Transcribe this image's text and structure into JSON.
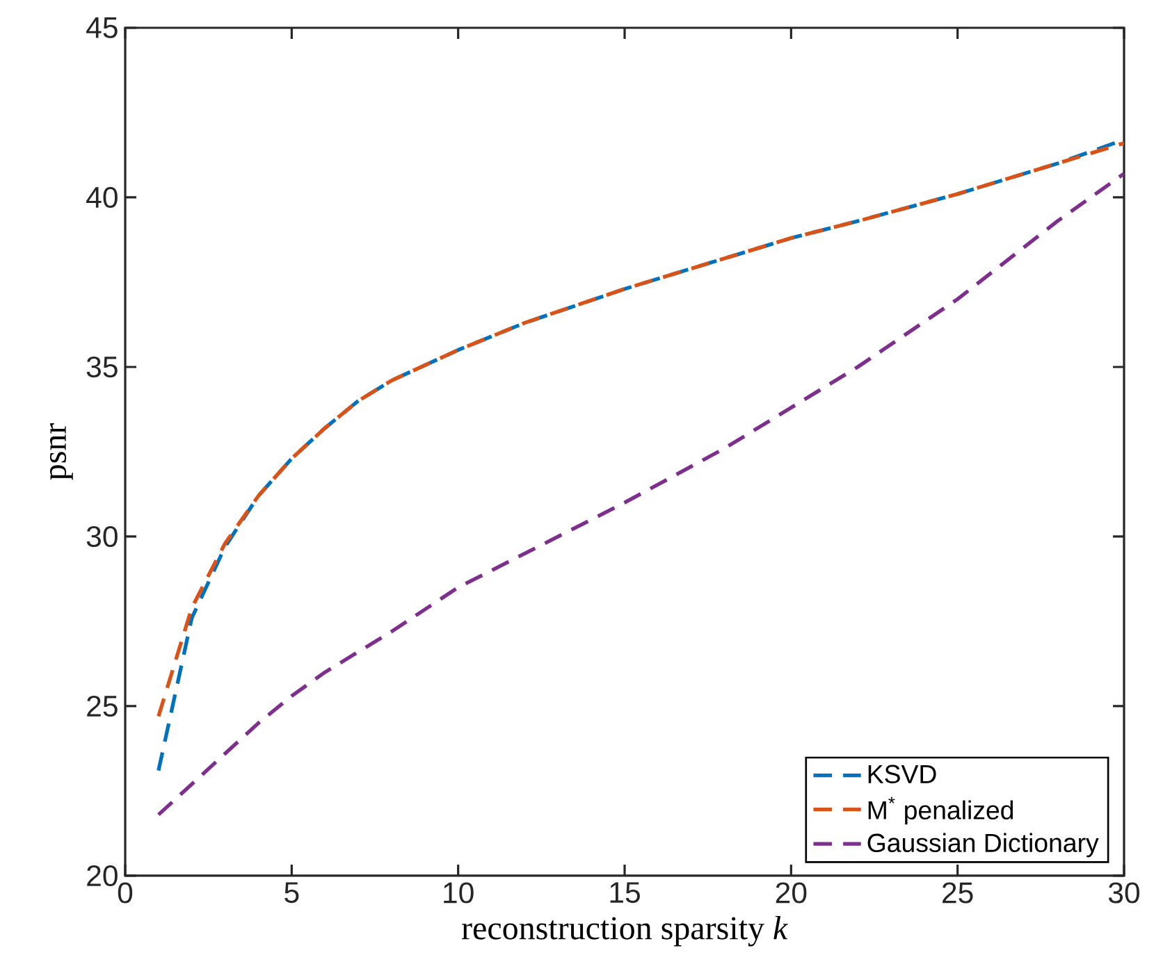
{
  "chart_data": {
    "type": "line",
    "xlabel": "reconstruction sparsity *k*",
    "ylabel": "psnr",
    "x": [
      1,
      2,
      3,
      4,
      5,
      6,
      7,
      8,
      10,
      12,
      15,
      18,
      20,
      22,
      25,
      28,
      30
    ],
    "series": [
      {
        "name": "KSVD",
        "color": "#0072bd",
        "values": [
          23.1,
          27.6,
          29.7,
          31.2,
          32.3,
          33.2,
          34.0,
          34.6,
          35.5,
          36.3,
          37.3,
          38.2,
          38.8,
          39.3,
          40.1,
          41.0,
          41.7
        ]
      },
      {
        "name": "M$^{*}$ penalized",
        "color": "#d95319",
        "values": [
          24.7,
          27.9,
          29.8,
          31.2,
          32.3,
          33.2,
          34.0,
          34.6,
          35.5,
          36.3,
          37.3,
          38.2,
          38.8,
          39.3,
          40.1,
          41.0,
          41.6
        ]
      },
      {
        "name": "Gaussian Dictionary",
        "color": "#7e2f8e",
        "values": [
          21.8,
          22.7,
          23.6,
          24.5,
          25.3,
          26.0,
          26.6,
          27.2,
          28.5,
          29.5,
          31.0,
          32.6,
          33.8,
          35.0,
          37.0,
          39.3,
          40.7
        ]
      }
    ],
    "xlim": [
      0,
      30
    ],
    "ylim": [
      20,
      45
    ],
    "xticks": [
      0,
      5,
      10,
      15,
      20,
      25,
      30
    ],
    "yticks": [
      20,
      25,
      30,
      35,
      40,
      45
    ],
    "grid": false,
    "legend": "bottom right",
    "marker": "none",
    "line_style": "dashed"
  }
}
